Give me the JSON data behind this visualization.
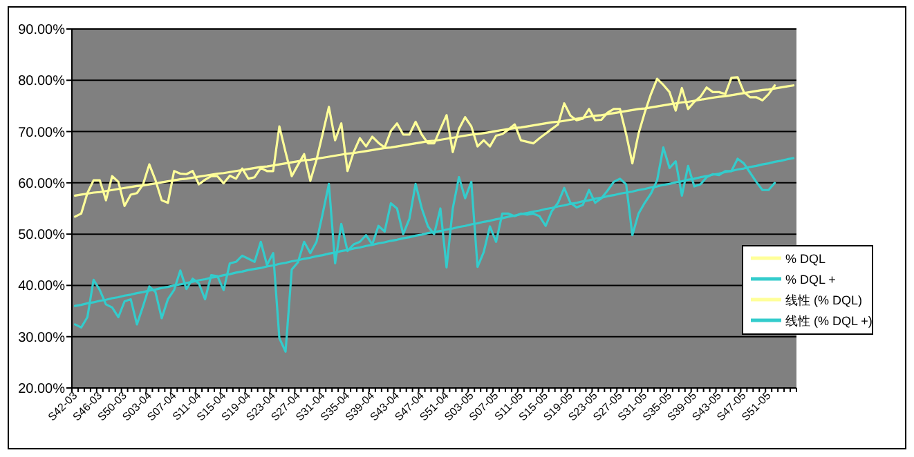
{
  "chart_data": {
    "type": "line",
    "categories": [
      "S42-03",
      null,
      null,
      null,
      "S46-03",
      null,
      null,
      null,
      "S50-03",
      null,
      null,
      null,
      "S03-04",
      null,
      null,
      null,
      "S07-04",
      null,
      null,
      null,
      "S11-04",
      null,
      null,
      null,
      "S15-04",
      null,
      null,
      null,
      "S19-04",
      null,
      null,
      null,
      "S23-04",
      null,
      null,
      null,
      "S27-04",
      null,
      null,
      null,
      "S31-04",
      null,
      null,
      null,
      "S35-04",
      null,
      null,
      null,
      "S39-04",
      null,
      null,
      null,
      "S43-04",
      null,
      null,
      null,
      "S47-04",
      null,
      null,
      null,
      "S51-04",
      null,
      null,
      null,
      "S03-05",
      null,
      null,
      null,
      "S07-05",
      null,
      null,
      null,
      "S11-05",
      null,
      null,
      null,
      "S15-05",
      null,
      null,
      null,
      "S19-05",
      null,
      null,
      null,
      "S23-05",
      null,
      null,
      null,
      "S27-05",
      null,
      null,
      null,
      "S31-05",
      null,
      null,
      null,
      "S35-05",
      null,
      null,
      null,
      "S39-05",
      null,
      null,
      null,
      "S43-05",
      null,
      null,
      null,
      "S47-05",
      null,
      null,
      null,
      "S51-05",
      null,
      null,
      null,
      null
    ],
    "series": [
      {
        "name": "% DQL",
        "color": "#ffff99",
        "values": [
          53.4,
          54,
          58,
          60.5,
          60.5,
          56.6,
          61.3,
          60.2,
          55.5,
          57.7,
          58,
          59.7,
          63.6,
          60.5,
          56.6,
          56.1,
          62.3,
          61.8,
          61.7,
          62.3,
          59.7,
          60.6,
          61.3,
          61.3,
          59.9,
          61.4,
          60.8,
          62.8,
          60.8,
          61.1,
          62.9,
          62.3,
          62.3,
          71,
          66,
          61.3,
          63.5,
          65.6,
          60.4,
          64.5,
          69.6,
          74.8,
          68.3,
          71.6,
          62.3,
          66,
          68.7,
          67.1,
          69,
          67.8,
          66.9,
          70.1,
          71.6,
          69.4,
          69.4,
          71.9,
          69.4,
          67.7,
          67.7,
          70.5,
          73.2,
          66,
          70.5,
          72.8,
          71,
          67.1,
          68.3,
          67.1,
          69.2,
          69.5,
          70.4,
          71.4,
          68.3,
          68,
          67.7,
          68.7,
          69.6,
          70.5,
          71.4,
          75.5,
          73.1,
          72.2,
          72.5,
          74.4,
          72.2,
          72.3,
          73.7,
          74.4,
          74.4,
          69.5,
          63.8,
          69.6,
          73.7,
          77.3,
          80.3,
          79.1,
          77.7,
          74.1,
          78.5,
          74.4,
          75.8,
          76.8,
          78.6,
          77.7,
          77.7,
          77.3,
          80.5,
          80.6,
          77.7,
          76.7,
          76.7,
          76.1,
          77.3,
          79,
          null,
          null,
          null
        ]
      },
      {
        "name": "% DQL +",
        "color": "#33cccc",
        "values": [
          32.4,
          31.8,
          33.8,
          41.1,
          39.1,
          36.3,
          35.7,
          33.8,
          36.9,
          37.3,
          32.4,
          36,
          39.8,
          38.7,
          33.6,
          37.3,
          39.1,
          42.9,
          39.3,
          41.3,
          40.4,
          37.3,
          42,
          41.8,
          39.1,
          44.3,
          44.6,
          45.8,
          45.2,
          44.6,
          48.5,
          44,
          46.3,
          29.7,
          27.1,
          43.1,
          44.5,
          48.5,
          46.3,
          48.5,
          54,
          59.8,
          44.3,
          52,
          46.7,
          48,
          48.5,
          49.8,
          48,
          51.6,
          50.5,
          56,
          55,
          50,
          53,
          59.8,
          55,
          51.5,
          50,
          55,
          43.5,
          55,
          61.1,
          57,
          60.2,
          43.6,
          46.5,
          51.5,
          48.5,
          54,
          54,
          53.5,
          54,
          53.8,
          54,
          53.5,
          51.6,
          54.5,
          56.1,
          59,
          56.1,
          55.2,
          55.7,
          58.6,
          56.1,
          57,
          58.5,
          60.2,
          60.8,
          59.7,
          49.8,
          54,
          56.1,
          57.9,
          60.5,
          66.9,
          62.9,
          64.2,
          57.5,
          63.3,
          59.3,
          59.7,
          61.1,
          61.7,
          61.5,
          62.3,
          62.3,
          64.7,
          63.8,
          62,
          60.2,
          58.6,
          58.6,
          60,
          null,
          null,
          null
        ]
      },
      {
        "name": "线性 (% DQL)",
        "color": "#ffff99",
        "values": [
          57.5,
          57.7,
          57.9,
          58.1,
          58.2,
          58.4,
          58.6,
          58.8,
          59.0,
          59.2,
          59.4,
          59.5,
          59.7,
          59.9,
          60.1,
          60.3,
          60.5,
          60.7,
          60.8,
          61.0,
          61.2,
          61.4,
          61.6,
          61.8,
          61.9,
          62.1,
          62.3,
          62.5,
          62.7,
          62.9,
          63.1,
          63.2,
          63.4,
          63.6,
          63.8,
          64.0,
          64.2,
          64.4,
          64.5,
          64.7,
          64.9,
          65.1,
          65.3,
          65.5,
          65.7,
          65.8,
          66.0,
          66.2,
          66.4,
          66.6,
          66.8,
          66.9,
          67.1,
          67.3,
          67.5,
          67.7,
          67.9,
          68.1,
          68.2,
          68.4,
          68.6,
          68.8,
          69.0,
          69.2,
          69.4,
          69.5,
          69.7,
          69.9,
          70.1,
          70.3,
          70.5,
          70.7,
          70.8,
          71.0,
          71.2,
          71.4,
          71.6,
          71.8,
          71.9,
          72.1,
          72.3,
          72.5,
          72.7,
          72.9,
          73.1,
          73.2,
          73.4,
          73.6,
          73.8,
          74.0,
          74.2,
          74.4,
          74.5,
          74.7,
          74.9,
          75.1,
          75.3,
          75.5,
          75.7,
          75.8,
          76.0,
          76.2,
          76.4,
          76.6,
          76.8,
          76.9,
          77.1,
          77.3,
          77.5,
          77.7,
          77.9,
          78.1,
          78.2,
          78.4,
          78.6,
          78.8,
          79.0
        ]
      },
      {
        "name": "线性 (% DQL +)",
        "color": "#33cccc",
        "values": [
          36.0,
          36.2,
          36.5,
          36.7,
          37.0,
          37.2,
          37.5,
          37.7,
          38.0,
          38.2,
          38.5,
          38.7,
          39.0,
          39.2,
          39.5,
          39.7,
          40.0,
          40.2,
          40.5,
          40.7,
          41.0,
          41.2,
          41.5,
          41.7,
          42.0,
          42.2,
          42.5,
          42.7,
          43.0,
          43.2,
          43.4,
          43.7,
          43.9,
          44.2,
          44.4,
          44.7,
          44.9,
          45.2,
          45.4,
          45.7,
          45.9,
          46.2,
          46.4,
          46.7,
          46.9,
          47.2,
          47.4,
          47.7,
          47.9,
          48.2,
          48.4,
          48.7,
          48.9,
          49.2,
          49.4,
          49.7,
          49.9,
          50.2,
          50.4,
          50.6,
          50.9,
          51.1,
          51.4,
          51.6,
          51.9,
          52.1,
          52.4,
          52.6,
          52.9,
          53.1,
          53.4,
          53.6,
          53.9,
          54.1,
          54.4,
          54.6,
          54.9,
          55.1,
          55.4,
          55.6,
          55.9,
          56.1,
          56.4,
          56.6,
          56.9,
          57.1,
          57.4,
          57.6,
          57.9,
          58.1,
          58.3,
          58.6,
          58.8,
          59.1,
          59.3,
          59.6,
          59.8,
          60.1,
          60.3,
          60.6,
          60.8,
          61.1,
          61.3,
          61.6,
          61.8,
          62.1,
          62.3,
          62.6,
          62.8,
          63.1,
          63.3,
          63.6,
          63.8,
          64.1,
          64.3,
          64.6,
          64.8
        ]
      }
    ],
    "ylim": [
      20,
      90
    ],
    "yticks": [
      {
        "value": 20,
        "label": "20.00%"
      },
      {
        "value": 30,
        "label": "30.00%"
      },
      {
        "value": 40,
        "label": "40.00%"
      },
      {
        "value": 50,
        "label": "50.00%"
      },
      {
        "value": 60,
        "label": "60.00%"
      },
      {
        "value": 70,
        "label": "70.00%"
      },
      {
        "value": 80,
        "label": "80.00%"
      },
      {
        "value": 90,
        "label": "90.00%"
      }
    ],
    "grid": "y",
    "legend": "right"
  }
}
